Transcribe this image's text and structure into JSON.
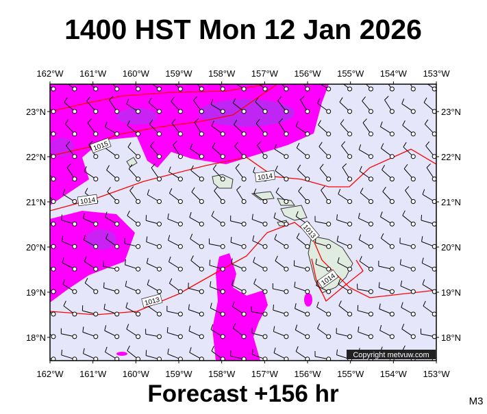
{
  "header": {
    "title": "1400 HST Mon 12 Jan 2026"
  },
  "footer": {
    "forecast": "Forecast +156 hr",
    "model": "M3"
  },
  "map": {
    "lon_labels": [
      "162°W",
      "161°W",
      "160°W",
      "159°W",
      "158°W",
      "157°W",
      "156°W",
      "155°W",
      "154°W",
      "153°W"
    ],
    "lat_labels": [
      "23°N",
      "22°N",
      "21°N",
      "20°N",
      "19°N",
      "18°N"
    ],
    "isobar_labels": [
      "1015",
      "1014",
      "1014",
      "1013",
      "1014",
      "1013"
    ],
    "copyright": "Copyright metvuw.com"
  }
}
